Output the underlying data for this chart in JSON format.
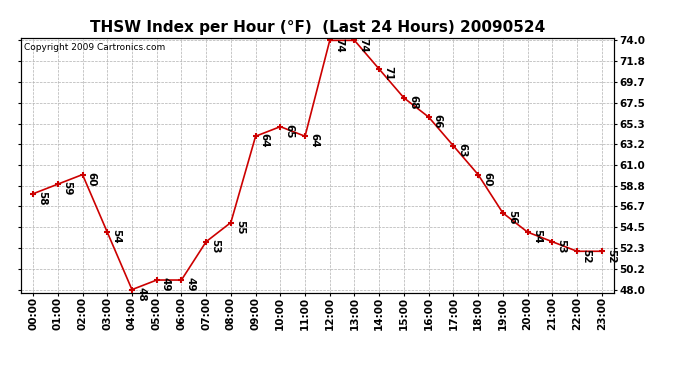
{
  "title": "THSW Index per Hour (°F)  (Last 24 Hours) 20090524",
  "copyright": "Copyright 2009 Cartronics.com",
  "hours": [
    "00:00",
    "01:00",
    "02:00",
    "03:00",
    "04:00",
    "05:00",
    "06:00",
    "07:00",
    "08:00",
    "09:00",
    "10:00",
    "11:00",
    "12:00",
    "13:00",
    "14:00",
    "15:00",
    "16:00",
    "17:00",
    "18:00",
    "19:00",
    "20:00",
    "21:00",
    "22:00",
    "23:00"
  ],
  "values": [
    58,
    59,
    60,
    54,
    48,
    49,
    49,
    53,
    55,
    64,
    65,
    64,
    74,
    74,
    71,
    68,
    66,
    63,
    60,
    56,
    54,
    53,
    52,
    52
  ],
  "ylim_min": 48.0,
  "ylim_max": 74.0,
  "yticks": [
    48.0,
    50.2,
    52.3,
    54.5,
    56.7,
    58.8,
    61.0,
    63.2,
    65.3,
    67.5,
    69.7,
    71.8,
    74.0
  ],
  "line_color": "#cc0000",
  "marker_color": "#cc0000",
  "bg_color": "#ffffff",
  "grid_color": "#b0b0b0",
  "title_fontsize": 11,
  "label_fontsize": 7.5,
  "annot_fontsize": 7.5,
  "copyright_fontsize": 6.5
}
